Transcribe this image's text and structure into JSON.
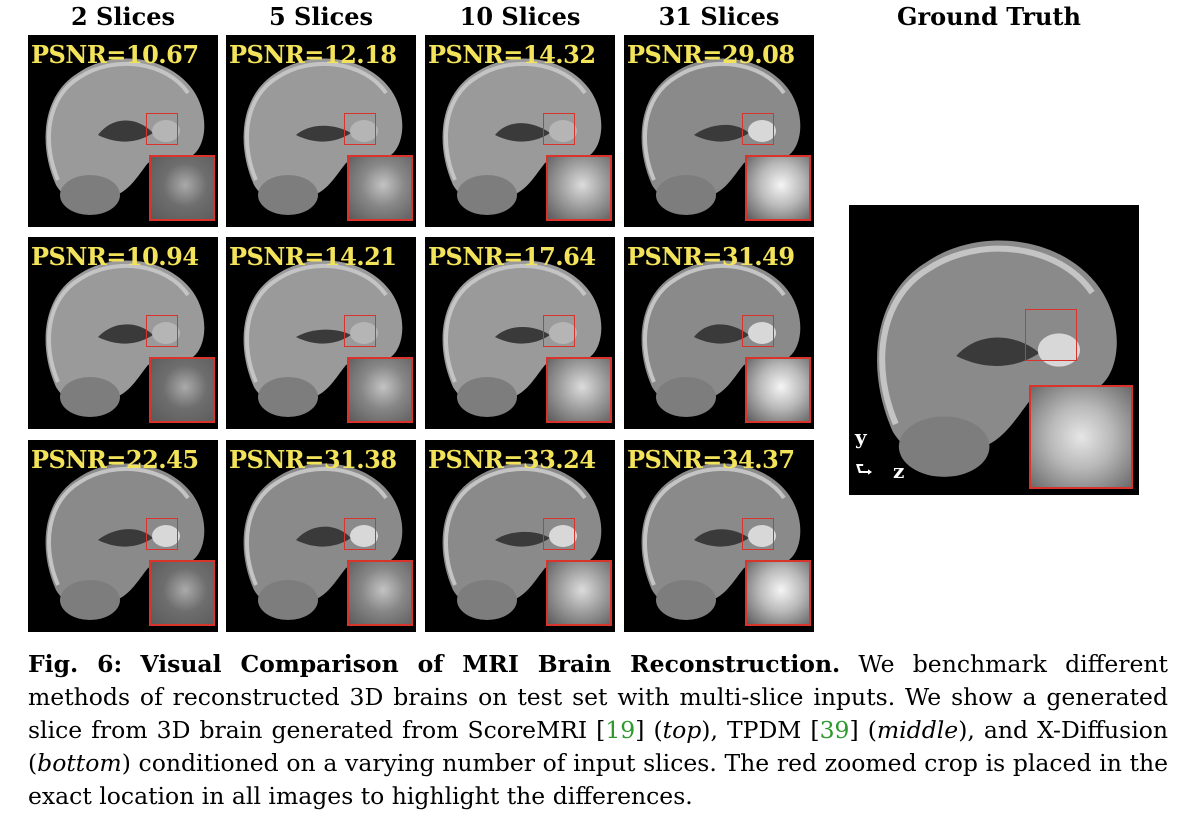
{
  "column_headers": [
    "2 Slices",
    "5 Slices",
    "10 Slices",
    "31 Slices",
    "Ground Truth"
  ],
  "rows": [
    {
      "method": "ScoreMRI",
      "psnr": [
        "PSNR=10.67",
        "PSNR=12.18",
        "PSNR=14.32",
        "PSNR=29.08"
      ]
    },
    {
      "method": "TPDM",
      "psnr": [
        "PSNR=10.94",
        "PSNR=14.21",
        "PSNR=17.64",
        "PSNR=31.49"
      ]
    },
    {
      "method": "X-Diffusion",
      "psnr": [
        "PSNR=22.45",
        "PSNR=31.38",
        "PSNR=33.24",
        "PSNR=34.37"
      ]
    }
  ],
  "ground_truth": {
    "axis_y": "y",
    "axis_arrow": "⮑",
    "axis_z": "z"
  },
  "caption": {
    "fig_label": "Fig. 6:",
    "title": "Visual Comparison of MRI Brain Reconstruction.",
    "t1": " We benchmark different methods of reconstructed 3D brains on test set with multi-slice inputs. We show a generated slice from 3D brain generated from ScoreMRI [",
    "ref1": "19",
    "t2": "] (",
    "top": "top",
    "t3": "), TPDM [",
    "ref2": "39",
    "t4": "] (",
    "middle": "middle",
    "t5": "), and X-Diffusion (",
    "bottom": "bottom",
    "t6": ") conditioned on a varying number of input slices. The red zoomed crop is placed in the exact location in all images to highlight the differences."
  },
  "colors": {
    "psnr_text": "#f3e35a",
    "crop_border": "#d9342b",
    "citation": "#2e9a2e"
  }
}
